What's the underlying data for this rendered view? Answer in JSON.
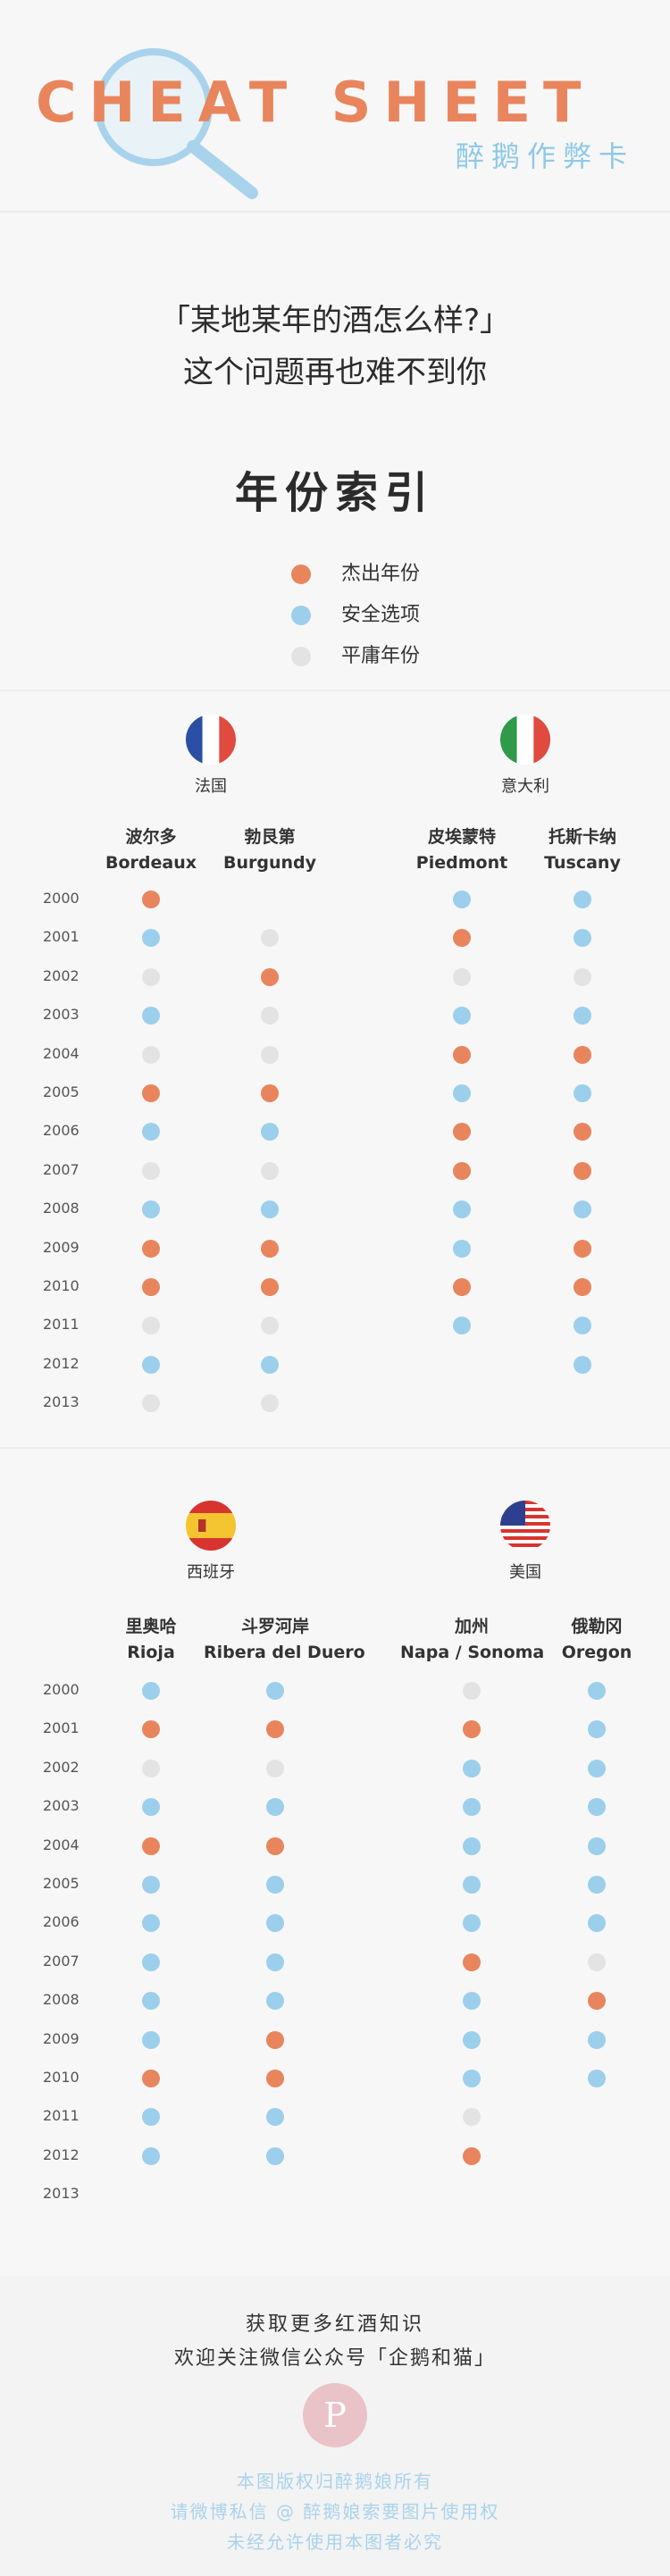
{
  "header": {
    "title": "CHEAT SHEET",
    "subtitle": "醉鹅作弊卡"
  },
  "intro": {
    "line1": "「某地某年的酒怎么样?」",
    "line2": "这个问题再也难不到你"
  },
  "index_title": "年份索引",
  "legend": [
    {
      "label": "杰出年份",
      "color": "#e8855d"
    },
    {
      "label": "安全选项",
      "color": "#9ccfeb"
    },
    {
      "label": "平庸年份",
      "color": "#e3e3e3"
    }
  ],
  "status_colors": {
    "O": "#e8855d",
    "B": "#9ccfeb",
    "G": "#e3e3e3"
  },
  "sections": [
    {
      "countries": [
        {
          "name": "法国",
          "flag": "france-flag-icon"
        },
        {
          "name": "意大利",
          "flag": "italy-flag-icon"
        }
      ],
      "regions": [
        {
          "zh": "波尔多",
          "en": "Bordeaux"
        },
        {
          "zh": "勃艮第",
          "en": "Burgundy"
        },
        {
          "zh": "皮埃蒙特",
          "en": "Piedmont"
        },
        {
          "zh": "托斯卡纳",
          "en": "Tuscany"
        }
      ],
      "years": [
        "2000",
        "2001",
        "2002",
        "2003",
        "2004",
        "2005",
        "2006",
        "2007",
        "2008",
        "2009",
        "2010",
        "2011",
        "2012",
        "2013"
      ],
      "ratings": [
        [
          "O",
          "",
          "B",
          "B"
        ],
        [
          "B",
          "G",
          "O",
          "B"
        ],
        [
          "G",
          "O",
          "G",
          "G"
        ],
        [
          "B",
          "G",
          "B",
          "B"
        ],
        [
          "G",
          "G",
          "O",
          "O"
        ],
        [
          "O",
          "O",
          "B",
          "B"
        ],
        [
          "B",
          "B",
          "O",
          "O"
        ],
        [
          "G",
          "G",
          "O",
          "O"
        ],
        [
          "B",
          "B",
          "B",
          "B"
        ],
        [
          "O",
          "O",
          "B",
          "O"
        ],
        [
          "O",
          "O",
          "O",
          "O"
        ],
        [
          "G",
          "G",
          "B",
          "B"
        ],
        [
          "B",
          "B",
          "",
          "B"
        ],
        [
          "G",
          "G",
          "",
          ""
        ]
      ]
    },
    {
      "countries": [
        {
          "name": "西班牙",
          "flag": "spain-flag-icon"
        },
        {
          "name": "美国",
          "flag": "usa-flag-icon"
        }
      ],
      "regions": [
        {
          "zh": "里奥哈",
          "en": "Rioja"
        },
        {
          "zh": "斗罗河岸",
          "en": "Ribera del Duero"
        },
        {
          "zh": "加州",
          "en": "Napa / Sonoma"
        },
        {
          "zh": "俄勒冈",
          "en": "Oregon"
        }
      ],
      "years": [
        "2000",
        "2001",
        "2002",
        "2003",
        "2004",
        "2005",
        "2006",
        "2007",
        "2008",
        "2009",
        "2010",
        "2011",
        "2012",
        "2013"
      ],
      "ratings": [
        [
          "B",
          "B",
          "G",
          "B"
        ],
        [
          "O",
          "O",
          "O",
          "B"
        ],
        [
          "G",
          "G",
          "B",
          "B"
        ],
        [
          "B",
          "B",
          "B",
          "B"
        ],
        [
          "O",
          "O",
          "B",
          "B"
        ],
        [
          "B",
          "B",
          "B",
          "B"
        ],
        [
          "B",
          "B",
          "B",
          "B"
        ],
        [
          "B",
          "B",
          "O",
          "G"
        ],
        [
          "B",
          "B",
          "B",
          "O"
        ],
        [
          "B",
          "O",
          "B",
          "B"
        ],
        [
          "O",
          "O",
          "B",
          "B"
        ],
        [
          "B",
          "B",
          "G",
          ""
        ],
        [
          "B",
          "B",
          "O",
          ""
        ],
        [
          "",
          "",
          "",
          ""
        ]
      ]
    }
  ],
  "footer": {
    "line1": "获取更多红酒知识",
    "line2": "欢迎关注微信公众号「企鹅和猫」",
    "badge": "P",
    "line3": "本图版权归醉鹅娘所有",
    "line4": "请微博私信 @ 醉鹅娘索要图片使用权",
    "line5": "未经允许使用本图者必究"
  }
}
